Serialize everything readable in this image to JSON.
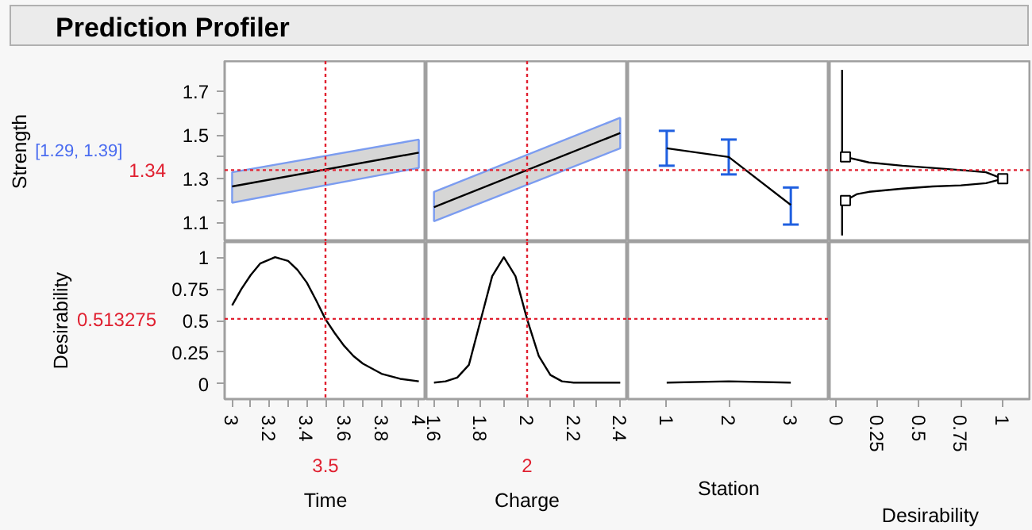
{
  "chart_data": [
    {
      "type": "line",
      "title": "Prediction Profiler",
      "ylabel": "Strength",
      "annotations": [
        "[1.29, 1.39]"
      ],
      "xlim": [
        2.96,
        4.04
      ],
      "ylim": [
        1.01,
        1.84
      ],
      "yticks": [
        1.1,
        {
          "value": 1.2,
          "label": null
        },
        1.3,
        {
          "value": 1.4,
          "label": null
        },
        1.5,
        {
          "value": 1.6,
          "label": null
        },
        1.7
      ],
      "tick_labels": "y",
      "series": [
        {
          "color": "#000000",
          "x": [
            3,
            4
          ],
          "values": [
            1.265,
            1.42
          ],
          "lower": [
            1.19,
            1.35
          ],
          "upper": [
            1.33,
            1.48
          ]
        }
      ],
      "ref_lines": [
        {
          "axis": "x",
          "value": 3.5,
          "color": "#e02030",
          "line_style": "dotted"
        },
        {
          "axis": "y",
          "value": 1.34,
          "label": "1.34",
          "color": "#e02030",
          "line_style": "dotted"
        }
      ]
    },
    {
      "type": "line",
      "xlim": [
        1.567,
        2.433
      ],
      "ylim": [
        1.01,
        1.84
      ],
      "tick_labels": false,
      "series": [
        {
          "color": "#000000",
          "x": [
            1.6,
            2.4
          ],
          "values": [
            1.17,
            1.51
          ],
          "lower": [
            1.105,
            1.44
          ],
          "upper": [
            1.24,
            1.58
          ]
        }
      ],
      "ref_lines": [
        {
          "axis": "x",
          "value": 2,
          "color": "#e02030",
          "line_style": "dotted"
        },
        {
          "axis": "y",
          "value": 1.34,
          "color": "#e02030",
          "line_style": "dotted"
        }
      ]
    },
    {
      "type": "line",
      "xlim": [
        0.375,
        3.625
      ],
      "ylim": [
        1.01,
        1.84
      ],
      "tick_labels": false,
      "series": [
        {
          "color": "#000000",
          "x": [
            1,
            2,
            3
          ],
          "values": [
            1.44,
            1.4,
            1.18
          ],
          "errors": [
            [
              1.36,
              1.52
            ],
            [
              1.32,
              1.48
            ],
            [
              1.09,
              1.26
            ]
          ]
        }
      ],
      "ref_lines": [
        {
          "axis": "y",
          "value": 1.34,
          "color": "#e02030",
          "line_style": "dotted"
        }
      ]
    },
    {
      "type": "line",
      "xlim": [
        -0.035,
        1.17
      ],
      "ylim": [
        1.01,
        1.84
      ],
      "tick_labels": false,
      "series": [
        {
          "color": "#000000",
          "x": [
            0.04,
            0.04,
            0.06,
            0.2,
            0.4,
            0.58,
            0.75,
            0.9,
            1.0,
            0.9,
            0.75,
            0.58,
            0.4,
            0.2,
            0.13,
            0.06,
            0.04,
            0.04
          ],
          "values": [
            1.8,
            1.41,
            1.4,
            1.375,
            1.36,
            1.35,
            1.34,
            1.33,
            1.3,
            1.28,
            1.27,
            1.265,
            1.255,
            1.24,
            1.23,
            1.2,
            1.19,
            1.04
          ]
        },
        {
          "type": "scatter",
          "marker": "square",
          "color": "#000000",
          "x": [
            0.06,
            1.0,
            0.06
          ],
          "values": [
            1.4,
            1.3,
            1.2
          ]
        }
      ],
      "ref_lines": [
        {
          "axis": "y",
          "value": 1.34,
          "color": "#e02030",
          "line_style": "dotted"
        }
      ]
    },
    {
      "type": "line",
      "ylabel": "Desirability",
      "xlabel": "Time",
      "xlim": [
        2.96,
        4.04
      ],
      "ylim": [
        -0.12,
        1.12
      ],
      "xticks": [
        3,
        {
          "value": 3.1,
          "label": null
        },
        3.2,
        {
          "value": 3.3,
          "label": null
        },
        3.4,
        {
          "value": 3.5,
          "label": null
        },
        3.6,
        {
          "value": 3.7,
          "label": null
        },
        3.8,
        {
          "value": 3.9,
          "label": null
        },
        4
      ],
      "yticks": [
        0,
        0.25,
        0.5,
        0.75,
        1
      ],
      "series": [
        {
          "color": "#000000",
          "x": [
            3,
            3.05,
            3.1,
            3.15,
            3.23,
            3.3,
            3.35,
            3.4,
            3.45,
            3.5,
            3.55,
            3.6,
            3.65,
            3.7,
            3.8,
            3.9,
            4
          ],
          "values": [
            0.62,
            0.75,
            0.86,
            0.95,
            1.0,
            0.97,
            0.9,
            0.8,
            0.66,
            0.51,
            0.4,
            0.3,
            0.22,
            0.16,
            0.08,
            0.04,
            0.02
          ]
        }
      ],
      "ref_lines": [
        {
          "axis": "x",
          "value": 3.5,
          "label": "3.5",
          "color": "#e02030",
          "line_style": "dotted"
        },
        {
          "axis": "y",
          "value": 0.513275,
          "label": "0.513275",
          "color": "#e02030",
          "line_style": "dotted"
        }
      ]
    },
    {
      "type": "line",
      "xlabel": "Charge",
      "xlim": [
        1.567,
        2.433
      ],
      "ylim": [
        -0.12,
        1.12
      ],
      "xticks": [
        1.6,
        {
          "value": 1.7,
          "label": null
        },
        1.8,
        {
          "value": 1.9,
          "label": null
        },
        2,
        {
          "value": 2.1,
          "label": null
        },
        2.2,
        {
          "value": 2.3,
          "label": null
        },
        2.4
      ],
      "tick_labels": "x",
      "series": [
        {
          "color": "#000000",
          "x": [
            1.6,
            1.65,
            1.7,
            1.75,
            1.8,
            1.85,
            1.9,
            1.95,
            2,
            2.05,
            2.1,
            2.15,
            2.2,
            2.4
          ],
          "values": [
            0.01,
            0.02,
            0.05,
            0.15,
            0.5,
            0.85,
            1.0,
            0.85,
            0.51,
            0.22,
            0.07,
            0.02,
            0.01,
            0.01
          ]
        }
      ],
      "ref_lines": [
        {
          "axis": "x",
          "value": 2,
          "label": "2",
          "color": "#e02030",
          "line_style": "dotted"
        },
        {
          "axis": "y",
          "value": 0.513275,
          "color": "#e02030",
          "line_style": "dotted"
        }
      ]
    },
    {
      "type": "line",
      "xlabel": "Station",
      "xlim": [
        0.375,
        3.625
      ],
      "ylim": [
        -0.12,
        1.12
      ],
      "xticks": [
        1,
        2,
        3
      ],
      "tick_labels": "x",
      "series": [
        {
          "color": "#000000",
          "x": [
            1,
            2,
            3
          ],
          "values": [
            0.01,
            0.02,
            0.01
          ]
        }
      ],
      "ref_lines": [
        {
          "axis": "y",
          "value": 0.513275,
          "color": "#e02030",
          "line_style": "dotted"
        }
      ]
    },
    {
      "type": "line",
      "xlabel": "Desirability",
      "xlim": [
        -0.035,
        1.17
      ],
      "ylim": [
        -0.12,
        1.12
      ],
      "xticks": [
        0,
        0.25,
        0.5,
        0.75,
        1
      ],
      "tick_labels": "x"
    }
  ]
}
